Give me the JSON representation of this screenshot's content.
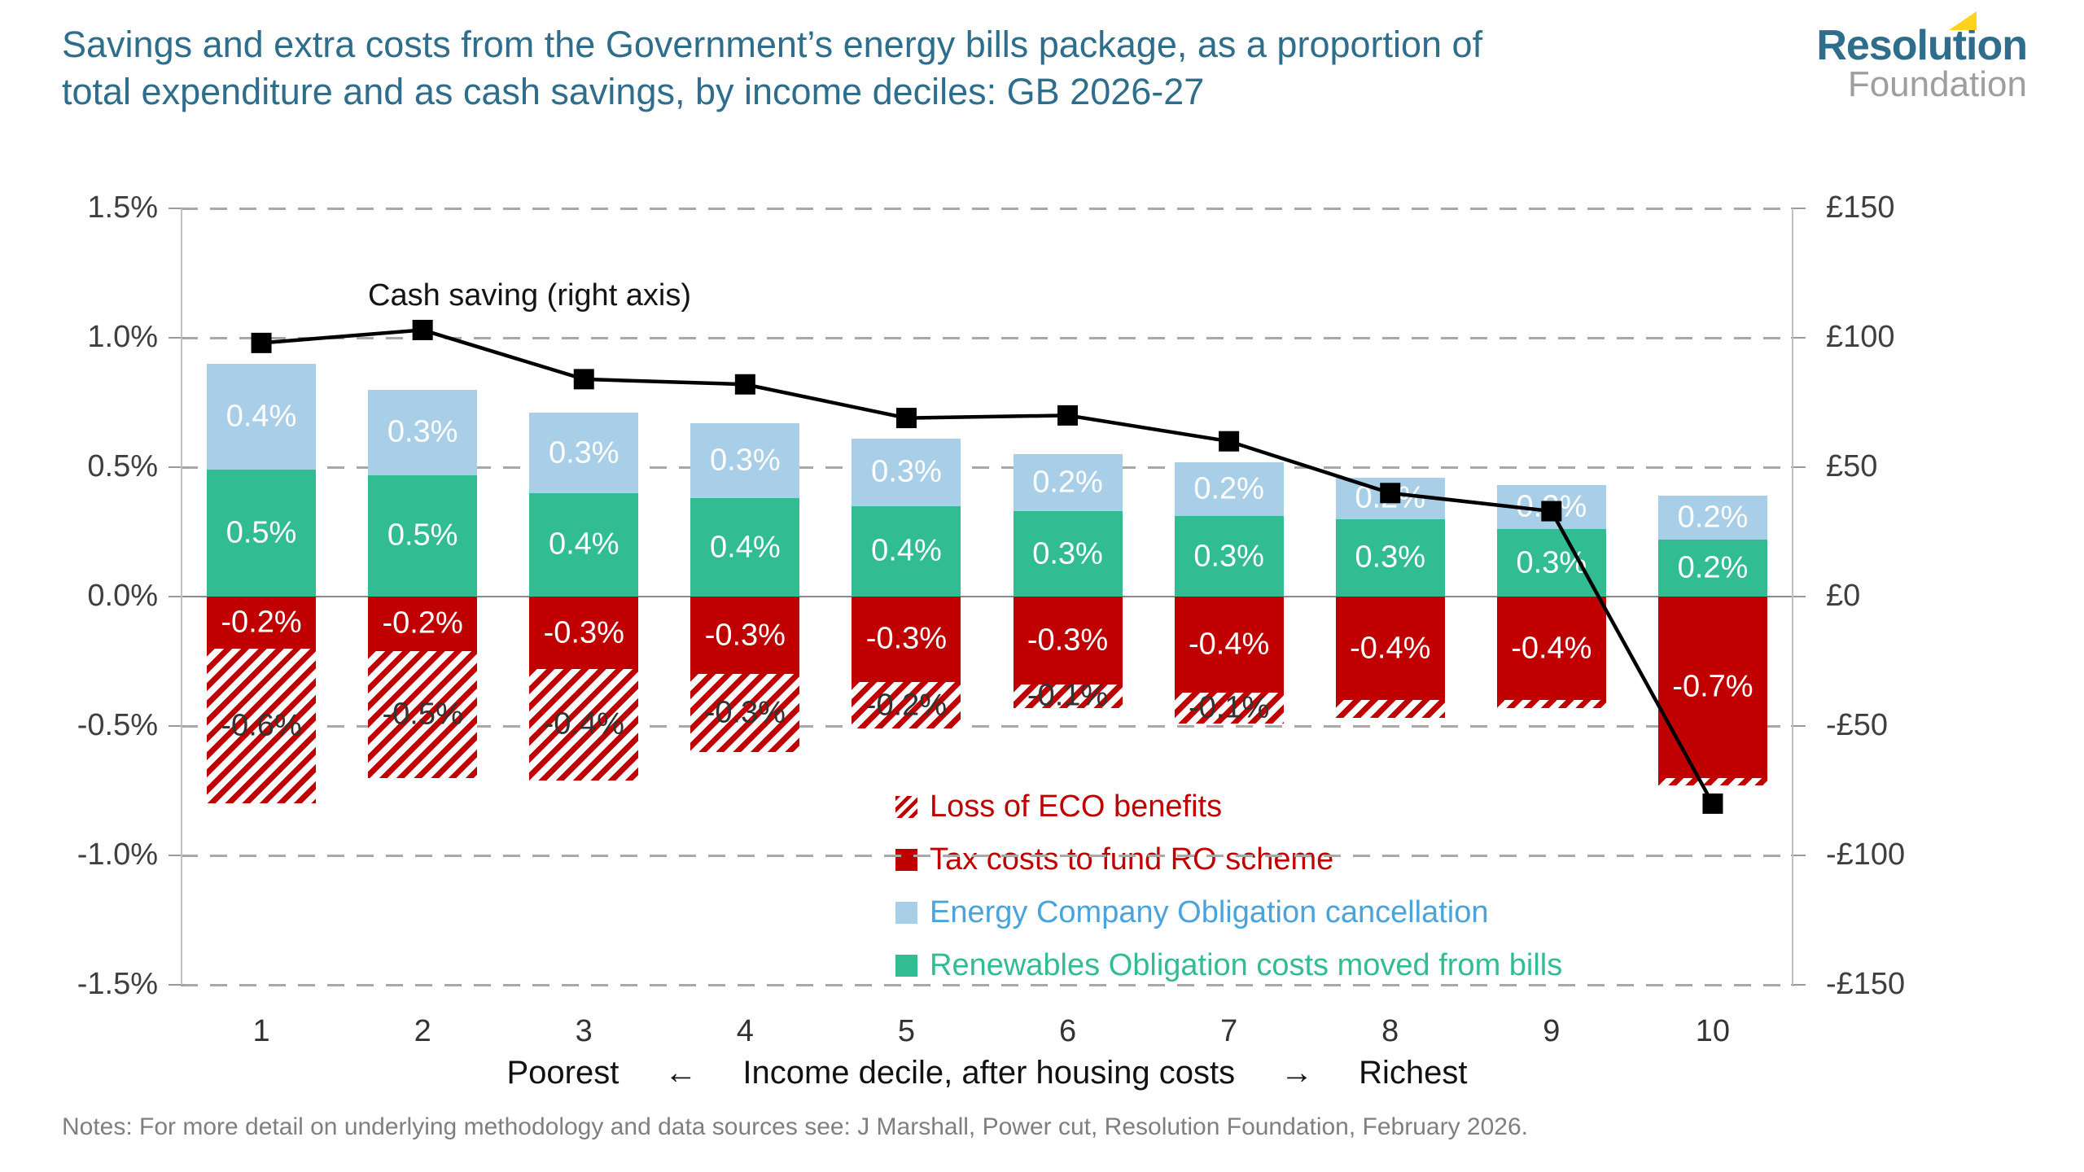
{
  "header": {
    "title_line1": "Savings and extra costs from the Government’s energy bills package, as a proportion of",
    "title_line2": "total expenditure and as cash savings, by income deciles: GB 2026-27",
    "logo": {
      "line1": "Resolution",
      "line2": "Foundation"
    }
  },
  "chart_data": {
    "type": "bar",
    "subtype": "stacked bars (left % axis) with overlaid line (right £ axis)",
    "title": "Savings and extra costs from the Government’s energy bills package, as a proportion of total expenditure and as cash savings, by income deciles: GB 2026-27",
    "categories": [
      "1",
      "2",
      "3",
      "4",
      "5",
      "6",
      "7",
      "8",
      "9",
      "10"
    ],
    "x_axis": {
      "caption_left": "Poorest",
      "arrow_left": "←",
      "caption_center": "Income decile, after housing costs",
      "arrow_right": "→",
      "caption_right": "Richest"
    },
    "left_axis": {
      "unit": "%",
      "min": -1.5,
      "max": 1.5,
      "step": 0.5,
      "ticks": [
        "1.5%",
        "1.0%",
        "0.5%",
        "0.0%",
        "-0.5%",
        "-1.0%",
        "-1.5%"
      ]
    },
    "right_axis": {
      "unit": "£",
      "min": -150,
      "max": 150,
      "step": 50,
      "ticks": [
        "£150",
        "£100",
        "£50",
        "£0",
        "-£50",
        "-£100",
        "-£150"
      ]
    },
    "grid": "horizontal dashed gridlines",
    "series": [
      {
        "name": "Energy Company Obligation cancellation",
        "role": "positive-stack-top",
        "color": "#A9CFE8",
        "values": [
          0.41,
          0.33,
          0.31,
          0.29,
          0.26,
          0.22,
          0.21,
          0.16,
          0.17,
          0.17
        ],
        "labels": [
          "0.4%",
          "0.3%",
          "0.3%",
          "0.3%",
          "0.3%",
          "0.2%",
          "0.2%",
          "0.2%",
          "0.2%",
          "0.2%"
        ]
      },
      {
        "name": "Renewables Obligation costs moved from bills",
        "role": "positive-stack-base",
        "color": "#31BC92",
        "values": [
          0.49,
          0.47,
          0.4,
          0.38,
          0.35,
          0.33,
          0.31,
          0.3,
          0.26,
          0.22
        ],
        "labels": [
          "0.5%",
          "0.5%",
          "0.4%",
          "0.4%",
          "0.4%",
          "0.3%",
          "0.3%",
          "0.3%",
          "0.3%",
          "0.2%"
        ]
      },
      {
        "name": "Tax costs to fund RO scheme",
        "role": "negative-stack-base",
        "color": "#C00000",
        "values": [
          -0.2,
          -0.21,
          -0.28,
          -0.3,
          -0.33,
          -0.34,
          -0.37,
          -0.4,
          -0.4,
          -0.7
        ],
        "labels": [
          "-0.2%",
          "-0.2%",
          "-0.3%",
          "-0.3%",
          "-0.3%",
          "-0.3%",
          "-0.4%",
          "-0.4%",
          "-0.4%",
          "-0.7%"
        ]
      },
      {
        "name": "Loss of ECO benefits",
        "role": "negative-stack-tail",
        "style": "hatched",
        "color": "#C00000",
        "values": [
          -0.6,
          -0.49,
          -0.43,
          -0.3,
          -0.18,
          -0.09,
          -0.12,
          -0.07,
          -0.03,
          -0.03
        ],
        "labels": [
          "-0.6%",
          "-0.5%",
          "-0.4%",
          "-0.3%",
          "-0.2%",
          "-0.1%",
          "-0.1%",
          "",
          "",
          ""
        ]
      }
    ],
    "line_series": {
      "name": "Cash saving (right axis)",
      "axis": "right",
      "color": "#000000",
      "marker": "square",
      "values": [
        98,
        103,
        84,
        82,
        69,
        70,
        60,
        40,
        33,
        -80
      ]
    },
    "legend": [
      {
        "label": "Loss of ECO benefits",
        "swatch": "hatched",
        "color": "#C00000",
        "text_color": "#C00000"
      },
      {
        "label": "Tax costs to fund RO scheme",
        "swatch": "solid",
        "color": "#C00000",
        "text_color": "#C00000"
      },
      {
        "label": "Energy Company Obligation cancellation",
        "swatch": "solid",
        "color": "#A9CFE8",
        "text_color": "#4AA3DB"
      },
      {
        "label": "Renewables Obligation costs moved from bills",
        "swatch": "solid",
        "color": "#31BC92",
        "text_color": "#31BC92"
      }
    ],
    "colors": {
      "title_teal": "#2E6D8C",
      "bar_blue": "#A9CFE8",
      "bar_green": "#31BC92",
      "bar_red": "#C00000",
      "line_black": "#000000",
      "gridline_gray": "#A8A8A8",
      "logo_yellow": "#FFD21E",
      "logo_gray": "#9E9E9E"
    }
  },
  "notes": "Notes: For more detail on underlying methodology and data sources see: J Marshall, Power cut, Resolution Foundation, February 2026."
}
